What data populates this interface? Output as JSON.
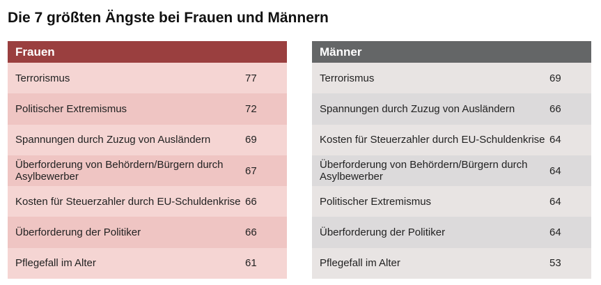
{
  "title": "Die 7 größten Ängste bei Frauen und Männern",
  "colors": {
    "frauen_header": "#9a3f3f",
    "maenner_header": "#646667"
  },
  "frauen": {
    "header": "Frauen",
    "rows": [
      {
        "label": "Terrorismus",
        "value": "77"
      },
      {
        "label": "Politischer Extremismus",
        "value": "72"
      },
      {
        "label": "Spannungen durch Zuzug von Ausländern",
        "value": "69"
      },
      {
        "label": "Überforderung von Behördern/Bürgern durch Asylbewerber",
        "value": "67"
      },
      {
        "label": "Kosten für Steuerzahler durch EU-Schuldenkrise",
        "value": "66"
      },
      {
        "label": "Überforderung der Politiker",
        "value": "66"
      },
      {
        "label": "Pflegefall im Alter",
        "value": "61"
      }
    ]
  },
  "maenner": {
    "header": "Männer",
    "rows": [
      {
        "label": "Terrorismus",
        "value": "69"
      },
      {
        "label": "Spannungen durch Zuzug von Ausländern",
        "value": "66"
      },
      {
        "label": "Kosten für Steuerzahler durch EU-Schuldenkrise",
        "value": "64"
      },
      {
        "label": "Überforderung von Behördern/Bürgern durch Asylbewerber",
        "value": "64"
      },
      {
        "label": "Politischer Extremismus",
        "value": "64"
      },
      {
        "label": "Überforderung der Politiker",
        "value": "64"
      },
      {
        "label": "Pflegefall im Alter",
        "value": "53"
      }
    ]
  }
}
